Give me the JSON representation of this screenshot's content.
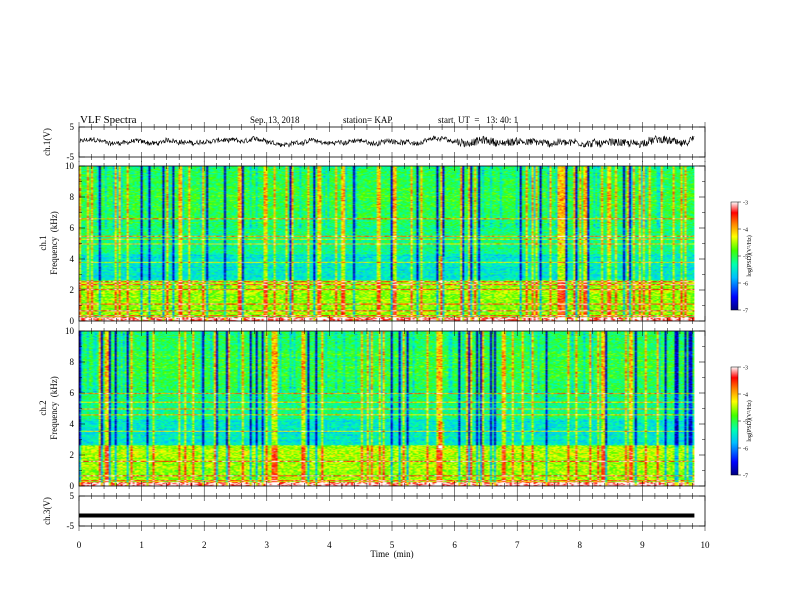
{
  "header": {
    "title": "VLF Spectra",
    "date": "Sep. 13, 2018",
    "station": "station= KAP",
    "start": "start  UT  =   13: 40: 1"
  },
  "chart_data": [
    {
      "type": "line",
      "panel": "ch1-waveform",
      "ylabel": "ch.1(V)",
      "ylim": [
        -5,
        5
      ],
      "yticks": [
        "5",
        "-5"
      ],
      "xlim": [
        0,
        10
      ],
      "data_extent_min": 9.83,
      "style": "dense noisy waveform centred near 0 V, amplitude roughly 1-2 V, more dense after 6 min"
    },
    {
      "type": "heatmap",
      "panel": "ch1-spectrogram",
      "ylabel": "ch.1\nFrequency  (kHz)",
      "ylim": [
        0,
        10
      ],
      "yticks": [
        "0",
        "2",
        "4",
        "6",
        "8",
        "10"
      ],
      "xlim": [
        0,
        10
      ],
      "data_extent_min": 9.83,
      "colorbar": {
        "label": "log(PSD)(V²/Hz)",
        "range": [
          -7,
          -3
        ],
        "ticks": [
          "-3",
          "-4",
          "-5",
          "-6",
          "-7"
        ]
      },
      "horizontal_lines_khz": [
        0.3,
        0.6,
        1.1,
        2.0,
        2.3,
        2.5,
        3.8,
        5.0,
        5.3,
        5.5,
        6.6
      ],
      "event_min": 5.8
    },
    {
      "type": "heatmap",
      "panel": "ch2-spectrogram",
      "ylabel": "ch.2\nFrequency  (kHz)",
      "ylim": [
        0,
        10
      ],
      "yticks": [
        "0",
        "2",
        "4",
        "6",
        "8",
        "10"
      ],
      "xlim": [
        0,
        10
      ],
      "data_extent_min": 9.83,
      "colorbar": {
        "label": "log(PSD)(V²/Hz)",
        "range": [
          -7,
          -3
        ],
        "ticks": [
          "-3",
          "-4",
          "-5",
          "-6",
          "-7"
        ]
      },
      "horizontal_lines_khz": [
        0.3,
        0.6,
        1.6,
        3.5,
        4.6,
        5.0,
        5.4,
        6.0
      ],
      "event_min": 5.8
    },
    {
      "type": "line",
      "panel": "ch3-waveform",
      "ylabel": "ch.3(V)",
      "ylim": [
        -5,
        5
      ],
      "yticks": [
        "5",
        "-5"
      ],
      "xlim": [
        0,
        10
      ],
      "data_extent_min": 9.83,
      "constant_value_v": -1.5
    }
  ],
  "xaxis": {
    "label": "Time  (min)",
    "ticks": [
      "0",
      "1",
      "2",
      "3",
      "4",
      "5",
      "6",
      "7",
      "8",
      "9",
      "10"
    ]
  },
  "colors": {
    "colormap": [
      "#000080",
      "#0000ff",
      "#00bfff",
      "#00ffb0",
      "#40ff00",
      "#ffff00",
      "#ff8000",
      "#ff0000",
      "#ffffff"
    ]
  }
}
